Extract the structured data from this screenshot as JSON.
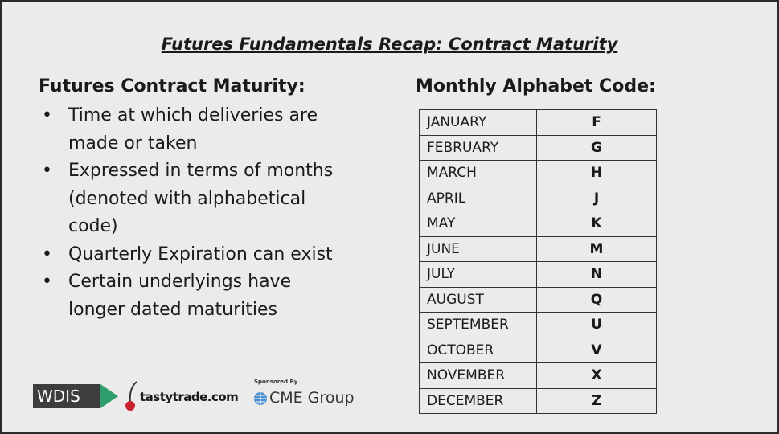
{
  "title": "Futures Fundamentals Recap: Contract Maturity",
  "left": {
    "heading": "Futures Contract Maturity:",
    "bullets": [
      "Time at which deliveries are made or taken",
      "Expressed in terms of months (denoted with alphabetical code)",
      "Quarterly Expiration can exist",
      "Certain underlyings have longer dated maturities"
    ]
  },
  "right": {
    "heading": "Monthly Alphabet Code:",
    "table": {
      "rows": [
        [
          "JANUARY",
          "F"
        ],
        [
          "FEBRUARY",
          "G"
        ],
        [
          "MARCH",
          "H"
        ],
        [
          "APRIL",
          "J"
        ],
        [
          "MAY",
          "K"
        ],
        [
          "JUNE",
          "M"
        ],
        [
          "JULY",
          "N"
        ],
        [
          "AUGUST",
          "Q"
        ],
        [
          "SEPTEMBER",
          "U"
        ],
        [
          "OCTOBER",
          "V"
        ],
        [
          "NOVEMBER",
          "X"
        ],
        [
          "DECEMBER",
          "Z"
        ]
      ]
    }
  },
  "footer": {
    "wdis": "WDIS",
    "tastytrade": "tastytrade.com",
    "sponsor": "Sponsored By",
    "cme": "CME Group"
  }
}
